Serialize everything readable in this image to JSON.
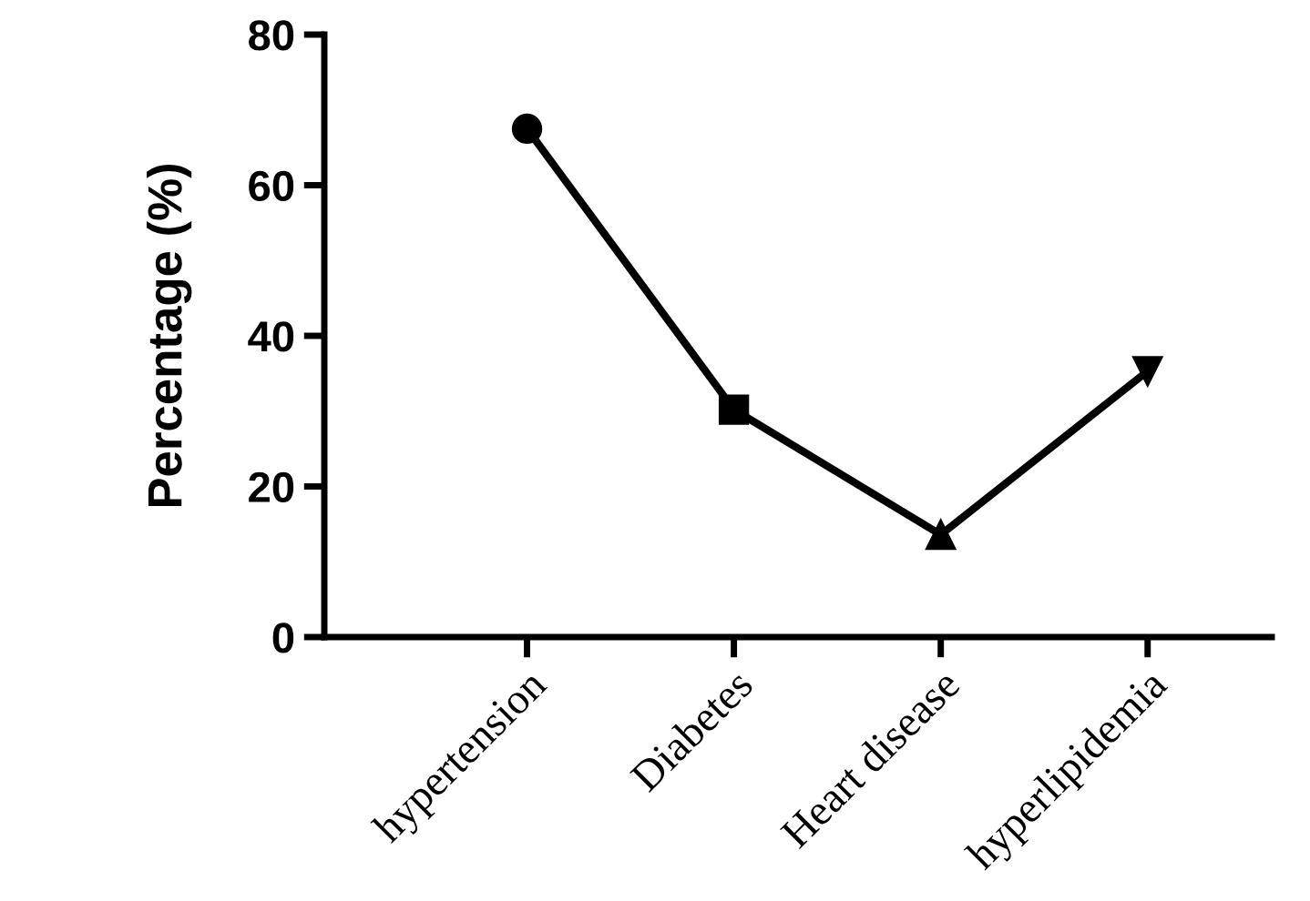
{
  "chart_data": {
    "type": "line",
    "ylabel": "Percentage (%)",
    "categories": [
      "hypertension",
      "Diabetes",
      "Heart disease",
      "hyperlipidemia"
    ],
    "series": [
      {
        "color": "#000000",
        "values": [
          67.5,
          30.2,
          13.6,
          35.3
        ],
        "marker": [
          "circle",
          "square",
          "triangle",
          "triangle_down"
        ]
      }
    ],
    "ylim": [
      0,
      80
    ],
    "yticks": [
      0,
      20,
      40,
      60,
      80
    ],
    "grid": false,
    "line_style": "solid"
  }
}
